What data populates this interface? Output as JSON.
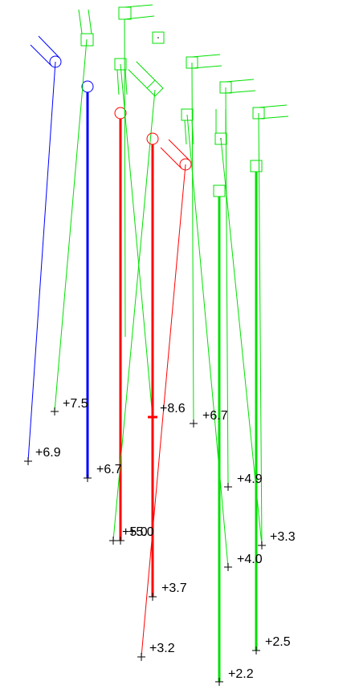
{
  "labels": [
    "+7.5",
    "+6.9",
    "+6.7",
    "+5.0",
    "+5.0",
    "+8.6",
    "+6.7",
    "+4.9",
    "+3.3",
    "+4.0",
    "+3.7",
    "+3.2",
    "+2.5",
    "+2.2"
  ]
}
